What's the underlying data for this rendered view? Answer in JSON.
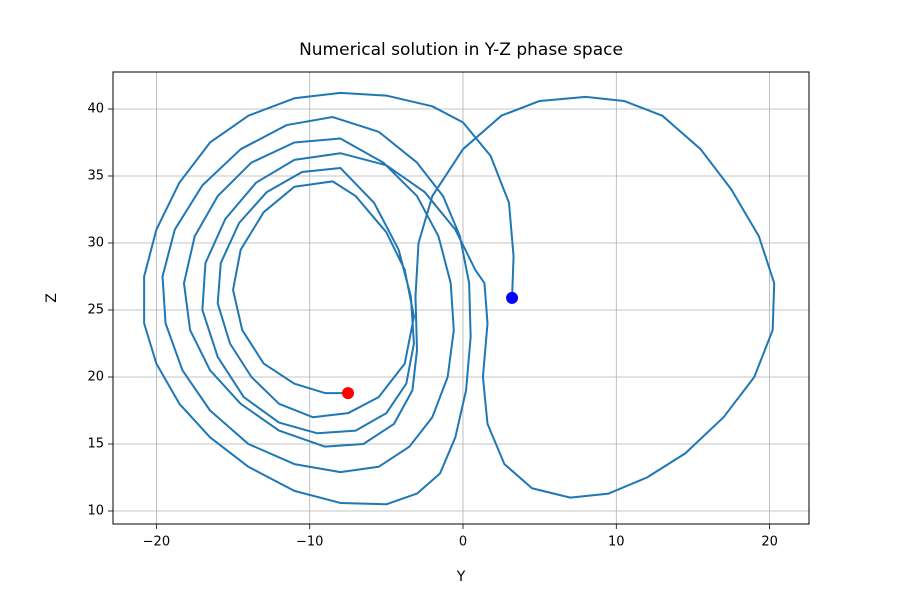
{
  "chart_data": {
    "type": "line",
    "title": "Numerical solution in Y-Z phase space",
    "x_label": "Y",
    "y_label": "Z",
    "grid": true,
    "xlim": [
      -22.83,
      22.57
    ],
    "ylim": [
      9.03,
      42.76
    ],
    "xticks": [
      {
        "value": -20,
        "label": "−20"
      },
      {
        "value": -10,
        "label": "−10"
      },
      0,
      10,
      20
    ],
    "yticks": [
      10,
      15,
      20,
      25,
      30,
      35,
      40
    ],
    "series": [
      {
        "style": "line",
        "color": "#1f77b4",
        "x": [
          3.2,
          3.3,
          3.0,
          1.8,
          0,
          -2,
          -5,
          -8,
          -11,
          -14,
          -16.5,
          -18.5,
          -20,
          -20.8,
          -20.8,
          -20,
          -18.5,
          -16.5,
          -14,
          -11,
          -8,
          -5,
          -3,
          -1.5,
          -0.5,
          0.2,
          0.5,
          0.4,
          -0.2,
          -1.3,
          -3,
          -5.5,
          -8.5,
          -11.5,
          -14.5,
          -17,
          -18.8,
          -19.6,
          -19.4,
          -18.3,
          -16.5,
          -14,
          -11,
          -8,
          -5.5,
          -3.5,
          -2,
          -1,
          -0.6,
          -0.8,
          -1.6,
          -3,
          -5.2,
          -8,
          -11,
          -13.8,
          -16,
          -17.5,
          -18.2,
          -17.8,
          -16.5,
          -14.5,
          -12,
          -9,
          -6.5,
          -4.5,
          -3.3,
          -3,
          -3.1,
          -2.9,
          -2,
          0,
          2.5,
          5,
          8,
          10.5,
          13,
          15.5,
          17.5,
          19.3,
          20.3,
          20.2,
          19,
          17,
          14.5,
          12,
          9.5,
          7,
          4.5,
          2.7,
          1.6,
          1.3,
          1.6,
          1.4,
          0.8,
          -0.5,
          -2.5,
          -5,
          -8,
          -11,
          -13.5,
          -15.5,
          -16.8,
          -17,
          -16,
          -14.3,
          -12,
          -9.5,
          -7,
          -5,
          -3.7,
          -3.2,
          -3.4,
          -4.2,
          -5.8,
          -8,
          -10.5,
          -12.8,
          -14.6,
          -15.8,
          -16,
          -15.2,
          -13.8,
          -12,
          -9.8,
          -7.5,
          -5.5,
          -3.8,
          -3.2,
          -3.8,
          -5,
          -7,
          -8.5,
          -11,
          -13,
          -14.5,
          -15,
          -14.4,
          -13,
          -11,
          -9,
          -7.5
        ],
        "y": [
          25.9,
          29,
          33,
          36.5,
          39,
          40.2,
          41,
          41.2,
          40.8,
          39.5,
          37.5,
          34.5,
          31,
          27.5,
          24,
          21,
          18,
          15.5,
          13.3,
          11.5,
          10.6,
          10.5,
          11.3,
          12.8,
          15.5,
          19,
          23,
          27,
          30.5,
          33.5,
          36,
          38.3,
          39.4,
          38.8,
          37,
          34.3,
          31,
          27.5,
          24,
          20.5,
          17.5,
          15,
          13.5,
          12.9,
          13.3,
          14.8,
          17,
          20,
          23.5,
          27,
          30.5,
          33.5,
          36,
          37.8,
          37.5,
          36,
          33.5,
          30.5,
          27,
          23.5,
          20.5,
          18,
          16,
          14.8,
          15,
          16.5,
          19,
          22,
          26,
          30,
          33.5,
          37,
          39.5,
          40.6,
          40.9,
          40.6,
          39.5,
          37,
          34,
          30.5,
          27,
          23.5,
          20,
          17,
          14.3,
          12.5,
          11.3,
          11,
          11.7,
          13.5,
          16.5,
          20,
          24,
          27,
          28,
          31,
          33.8,
          35.8,
          36.7,
          36.2,
          34.5,
          31.8,
          28.5,
          25,
          21.5,
          18.5,
          16.6,
          15.8,
          16,
          17.3,
          19.5,
          22.5,
          26,
          29.5,
          33,
          35.6,
          35.3,
          33.8,
          31.5,
          28.5,
          25.5,
          22.5,
          20,
          18,
          17,
          17.3,
          18.5,
          21,
          24.5,
          28,
          30.8,
          33.5,
          34.6,
          34.2,
          32.3,
          29.5,
          26.5,
          23.5,
          21,
          19.5,
          18.8,
          18.8
        ]
      },
      {
        "style": "marker",
        "color": "#0000ff",
        "x": [
          3.2
        ],
        "y": [
          25.9
        ]
      },
      {
        "style": "marker",
        "color": "#ff0000",
        "x": [
          -7.5
        ],
        "y": [
          18.8
        ]
      }
    ]
  }
}
